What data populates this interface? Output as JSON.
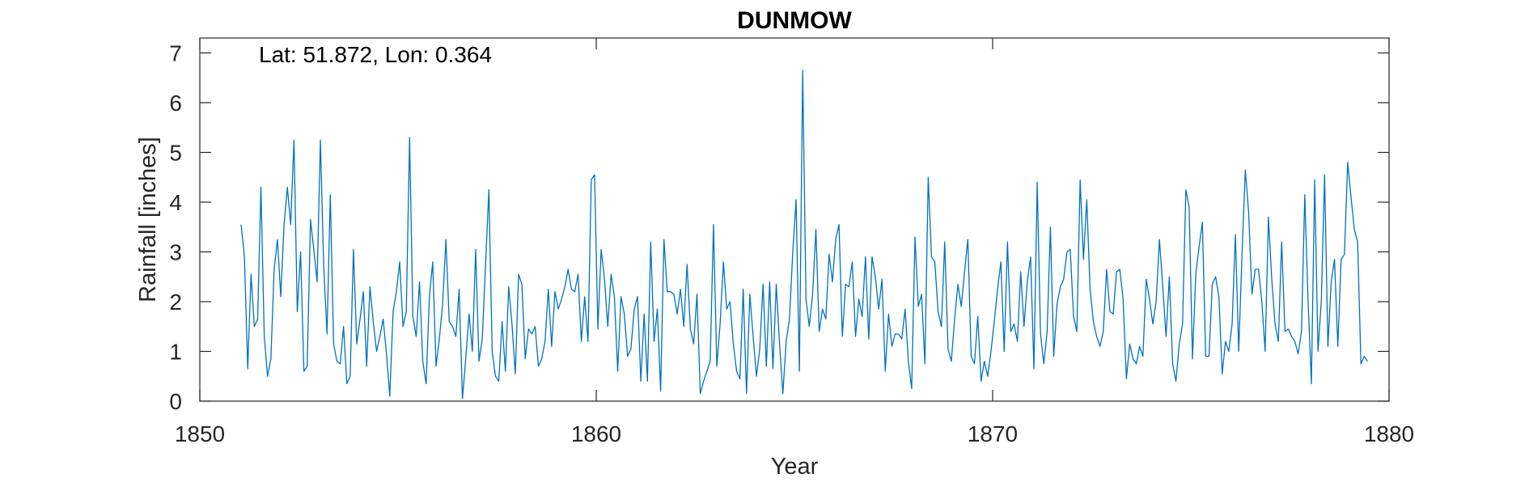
{
  "chart_data": {
    "type": "line",
    "title": "DUNMOW",
    "xlabel": "Year",
    "ylabel": "Rainfall [inches]",
    "annotation": "Lat: 51.872, Lon: 0.364",
    "xlim": [
      1850,
      1880
    ],
    "ylim": [
      0,
      7.3
    ],
    "xticks": [
      1850,
      1860,
      1870,
      1880
    ],
    "yticks": [
      0,
      1,
      2,
      3,
      4,
      5,
      6,
      7
    ],
    "grid": false,
    "box": true,
    "series": [
      {
        "color": "#0072BD",
        "x_start": 1851.042,
        "x_step": 0.08333,
        "values": [
          3.55,
          2.9,
          0.65,
          2.55,
          1.5,
          1.65,
          4.3,
          1.3,
          0.5,
          0.85,
          2.65,
          3.25,
          2.1,
          3.55,
          4.3,
          3.55,
          5.25,
          1.8,
          3.0,
          0.6,
          0.7,
          3.65,
          3.05,
          2.4,
          5.25,
          2.7,
          1.35,
          4.15,
          1.15,
          0.8,
          0.75,
          1.5,
          0.35,
          0.5,
          3.05,
          1.15,
          1.65,
          2.2,
          0.7,
          2.3,
          1.6,
          1.0,
          1.3,
          1.65,
          0.95,
          0.1,
          1.8,
          2.2,
          2.8,
          1.5,
          1.8,
          5.3,
          1.7,
          1.3,
          2.4,
          0.8,
          0.35,
          2.1,
          2.8,
          0.7,
          1.25,
          1.95,
          3.25,
          1.6,
          1.5,
          1.3,
          2.25,
          0.05,
          0.85,
          1.75,
          1.0,
          3.05,
          0.8,
          1.25,
          2.75,
          4.25,
          1.0,
          0.5,
          0.4,
          1.6,
          0.6,
          2.3,
          1.55,
          0.55,
          2.55,
          2.35,
          0.85,
          1.45,
          1.35,
          1.5,
          0.7,
          0.85,
          1.2,
          2.25,
          1.1,
          2.2,
          1.85,
          2.05,
          2.3,
          2.65,
          2.25,
          2.2,
          2.55,
          1.2,
          2.1,
          1.2,
          4.45,
          4.55,
          1.45,
          3.05,
          2.45,
          1.5,
          2.55,
          2.1,
          0.6,
          2.1,
          1.75,
          0.9,
          1.05,
          1.85,
          2.1,
          0.4,
          1.75,
          0.4,
          3.2,
          1.2,
          1.85,
          0.2,
          3.25,
          2.2,
          2.2,
          2.15,
          1.75,
          2.25,
          1.5,
          2.75,
          1.45,
          1.15,
          2.15,
          0.15,
          0.4,
          0.6,
          0.8,
          3.55,
          0.7,
          1.55,
          2.8,
          1.85,
          2.0,
          1.15,
          0.6,
          0.45,
          2.25,
          0.15,
          2.15,
          1.3,
          0.5,
          1.05,
          2.35,
          0.7,
          2.4,
          0.65,
          2.35,
          1.15,
          0.15,
          1.2,
          1.65,
          3.0,
          4.05,
          0.6,
          6.65,
          2.05,
          1.5,
          2.15,
          3.45,
          1.4,
          1.85,
          1.65,
          2.95,
          2.4,
          3.25,
          3.55,
          1.3,
          2.35,
          2.3,
          2.8,
          1.3,
          2.05,
          1.7,
          2.9,
          1.25,
          2.9,
          2.5,
          1.85,
          2.45,
          0.6,
          1.75,
          1.1,
          1.35,
          1.35,
          1.25,
          1.85,
          0.8,
          0.25,
          3.3,
          1.9,
          2.15,
          0.75,
          4.5,
          2.9,
          2.8,
          1.8,
          1.5,
          3.2,
          1.05,
          0.8,
          1.65,
          2.35,
          1.9,
          2.6,
          3.25,
          0.9,
          0.75,
          1.7,
          0.4,
          0.8,
          0.5,
          1.0,
          1.6,
          2.25,
          2.8,
          1.0,
          3.2,
          1.4,
          1.55,
          1.2,
          2.6,
          1.5,
          2.4,
          2.9,
          0.65,
          4.4,
          1.35,
          0.75,
          1.4,
          3.5,
          0.9,
          1.95,
          2.3,
          2.45,
          3.0,
          3.05,
          1.7,
          1.4,
          4.45,
          2.85,
          4.05,
          2.25,
          1.6,
          1.3,
          1.1,
          1.4,
          2.65,
          1.8,
          1.75,
          2.6,
          2.65,
          2.05,
          0.45,
          1.15,
          0.85,
          0.75,
          1.1,
          0.9,
          2.45,
          2.05,
          1.55,
          2.0,
          3.25,
          2.3,
          1.3,
          2.5,
          0.75,
          0.4,
          1.15,
          1.55,
          4.25,
          3.9,
          0.85,
          2.55,
          3.1,
          3.6,
          0.9,
          0.9,
          2.35,
          2.5,
          2.1,
          0.55,
          1.2,
          1.0,
          1.55,
          3.35,
          1.0,
          2.95,
          4.65,
          3.8,
          2.15,
          2.65,
          2.65,
          2.0,
          1.0,
          3.7,
          2.45,
          1.55,
          1.2,
          3.2,
          1.4,
          1.45,
          1.3,
          1.2,
          0.95,
          1.4,
          4.15,
          2.0,
          0.35,
          4.45,
          1.0,
          2.0,
          4.55,
          1.1,
          2.4,
          2.85,
          1.1,
          2.85,
          2.95,
          4.8,
          4.1,
          3.45,
          3.2,
          0.75,
          0.9,
          0.8
        ]
      }
    ]
  }
}
